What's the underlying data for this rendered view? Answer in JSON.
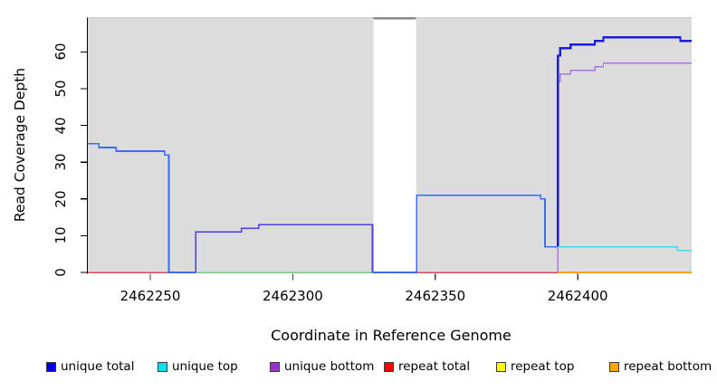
{
  "chart_data": {
    "type": "line",
    "line_style": "step",
    "title": "",
    "xlabel": "Coordinate in Reference Genome",
    "ylabel": "Read Coverage Depth",
    "xlim": [
      2462228,
      2462440
    ],
    "ylim": [
      0,
      69
    ],
    "grid": false,
    "plot_background": "#dcdcdc",
    "x_ticks": [
      2462250,
      2462300,
      2462350,
      2462400
    ],
    "x_tick_labels": [
      "2462250",
      "2462300",
      "2462350",
      "2462400"
    ],
    "y_ticks": [
      0,
      10,
      20,
      30,
      40,
      50,
      60
    ],
    "y_tick_labels": [
      "0",
      "10",
      "20",
      "30",
      "40",
      "50",
      "60"
    ],
    "masked_region": {
      "start": 2462328.3,
      "end": 2462343.3,
      "fill": "#ffffff",
      "top_edge_color": "#8a8a8a"
    },
    "legend_position": "bottom",
    "legend": [
      {
        "label": "unique total",
        "color": "#0000dd"
      },
      {
        "label": "unique top",
        "color": "#00e5ee"
      },
      {
        "label": "unique bottom",
        "color": "#9933cc"
      },
      {
        "label": "repeat total",
        "color": "#ff0000"
      },
      {
        "label": "repeat top",
        "color": "#ffff00"
      },
      {
        "label": "repeat bottom",
        "color": "#ffa500"
      }
    ],
    "segments": [
      {
        "name": "repeat-total-zero-line",
        "color": "#d9495f",
        "width": 1.5,
        "layer": "under",
        "points": [
          [
            2462228,
            0
          ],
          [
            2462393,
            0
          ]
        ]
      },
      {
        "name": "zero-line-green-overlap",
        "color": "#7cc87c",
        "width": 1.5,
        "layer": "under",
        "points": [
          [
            2462266,
            0
          ],
          [
            2462343,
            0
          ]
        ]
      },
      {
        "name": "unique-total-left",
        "color": "#3e6cf0",
        "width": 1.6,
        "layer": "over",
        "points": [
          [
            2462228,
            35
          ],
          [
            2462232,
            35
          ],
          [
            2462232,
            34
          ],
          [
            2462238,
            34
          ],
          [
            2462238,
            33
          ],
          [
            2462255,
            33
          ],
          [
            2462255,
            32
          ],
          [
            2462256.5,
            32
          ],
          [
            2462256.5,
            0
          ],
          [
            2462266,
            0
          ]
        ]
      },
      {
        "name": "unique-bottom-mid",
        "color": "#4c3ce6",
        "width": 1.6,
        "layer": "over",
        "points": [
          [
            2462266,
            0
          ],
          [
            2462266,
            11
          ],
          [
            2462282,
            11
          ],
          [
            2462282,
            12
          ],
          [
            2462288,
            12
          ],
          [
            2462288,
            13
          ],
          [
            2462328,
            13
          ],
          [
            2462328,
            0
          ]
        ]
      },
      {
        "name": "unique-total-mid",
        "color": "#3e6cf0",
        "width": 1.6,
        "layer": "over",
        "points": [
          [
            2462328,
            0
          ],
          [
            2462343.5,
            0
          ],
          [
            2462343.5,
            21
          ],
          [
            2462387,
            21
          ],
          [
            2462387,
            20
          ],
          [
            2462388.5,
            20
          ],
          [
            2462388.5,
            7
          ],
          [
            2462393,
            7
          ]
        ]
      },
      {
        "name": "unique-bottom-right",
        "color": "#a977dd",
        "width": 1.4,
        "layer": "over",
        "points": [
          [
            2462393,
            0
          ],
          [
            2462393,
            52
          ],
          [
            2462393.8,
            52
          ],
          [
            2462393.8,
            54
          ],
          [
            2462397.5,
            54
          ],
          [
            2462397.5,
            55
          ],
          [
            2462406,
            55
          ],
          [
            2462406,
            56
          ],
          [
            2462409,
            56
          ],
          [
            2462409,
            57
          ],
          [
            2462440,
            57
          ]
        ]
      },
      {
        "name": "unique-total-right",
        "color": "#1b1bd8",
        "width": 2.2,
        "layer": "over",
        "points": [
          [
            2462393,
            7
          ],
          [
            2462393,
            59
          ],
          [
            2462393.8,
            59
          ],
          [
            2462393.8,
            61
          ],
          [
            2462397.5,
            61
          ],
          [
            2462397.5,
            62
          ],
          [
            2462406,
            62
          ],
          [
            2462406,
            63
          ],
          [
            2462409,
            63
          ],
          [
            2462409,
            64
          ],
          [
            2462436,
            64
          ],
          [
            2462436,
            63
          ],
          [
            2462440,
            63
          ]
        ]
      },
      {
        "name": "unique-top-right",
        "color": "#4ed9e4",
        "width": 1.6,
        "layer": "over",
        "points": [
          [
            2462393,
            7
          ],
          [
            2462435,
            7
          ],
          [
            2462435,
            6
          ],
          [
            2462440,
            6
          ]
        ]
      },
      {
        "name": "repeat-bottom-right",
        "color": "#f5a11b",
        "width": 1.8,
        "layer": "over",
        "points": [
          [
            2462393,
            0
          ],
          [
            2462440,
            0
          ]
        ]
      }
    ]
  }
}
